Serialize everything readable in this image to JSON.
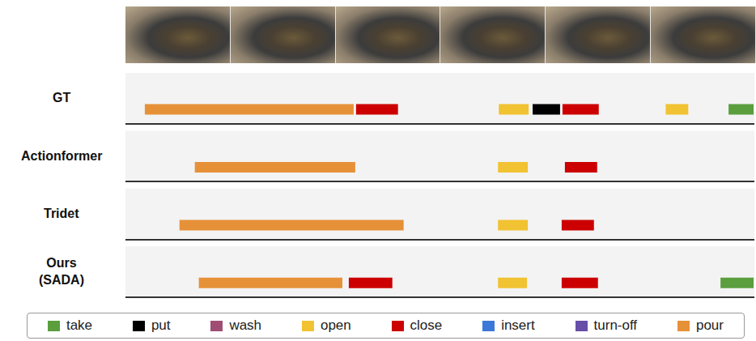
{
  "chart_data": {
    "type": "timeline",
    "xlim": [
      0,
      780
    ],
    "tick_labels": false,
    "legend": "bottom",
    "rows": [
      "GT",
      "Actionformer",
      "Tridet",
      "Ours (SADA)"
    ],
    "series": [
      {
        "name": "take",
        "color": "#5a9e3e",
        "segments": [
          {
            "row": "GT",
            "start": 748,
            "end": 779
          },
          {
            "row": "Ours (SADA)",
            "start": 738,
            "end": 779
          }
        ]
      },
      {
        "name": "put",
        "color": "#000000",
        "segments": [
          {
            "row": "GT",
            "start": 505,
            "end": 539
          }
        ]
      },
      {
        "name": "wash",
        "color": "#a04d73",
        "segments": []
      },
      {
        "name": "open",
        "color": "#f1c232",
        "segments": [
          {
            "row": "GT",
            "start": 463,
            "end": 500
          },
          {
            "row": "GT",
            "start": 670,
            "end": 698
          },
          {
            "row": "Actionformer",
            "start": 462,
            "end": 499
          },
          {
            "row": "Tridet",
            "start": 462,
            "end": 499
          },
          {
            "row": "Ours (SADA)",
            "start": 462,
            "end": 498
          }
        ]
      },
      {
        "name": "close",
        "color": "#cc0000",
        "segments": [
          {
            "row": "GT",
            "start": 286,
            "end": 338
          },
          {
            "row": "GT",
            "start": 542,
            "end": 587
          },
          {
            "row": "Actionformer",
            "start": 545,
            "end": 585
          },
          {
            "row": "Tridet",
            "start": 541,
            "end": 581
          },
          {
            "row": "Ours (SADA)",
            "start": 277,
            "end": 331
          },
          {
            "row": "Ours (SADA)",
            "start": 541,
            "end": 586
          }
        ]
      },
      {
        "name": "insert",
        "color": "#3c78d8",
        "segments": []
      },
      {
        "name": "turn-off",
        "color": "#674ea7",
        "segments": []
      },
      {
        "name": "pour",
        "color": "#e69138",
        "segments": [
          {
            "row": "GT",
            "start": 24,
            "end": 283
          },
          {
            "row": "Actionformer",
            "start": 86,
            "end": 285
          },
          {
            "row": "Tridet",
            "start": 67,
            "end": 345
          },
          {
            "row": "Ours (SADA)",
            "start": 91,
            "end": 269
          }
        ]
      }
    ]
  }
}
